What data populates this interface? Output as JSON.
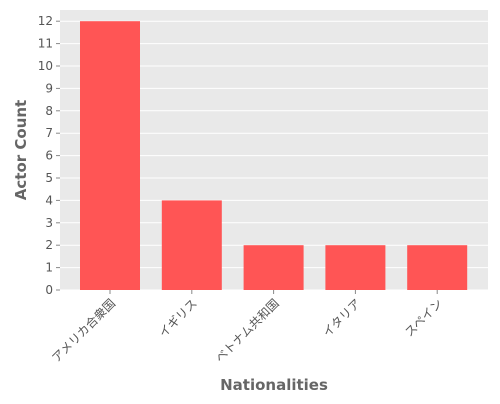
{
  "chart_data": {
    "type": "bar",
    "categories": [
      "アメリカ合衆国",
      "イギリス",
      "ベトナム共和国",
      "イタリア",
      "スペイン"
    ],
    "values": [
      12,
      4,
      2,
      2,
      2
    ],
    "xlabel": "Nationalities",
    "ylabel": "Actor Count",
    "ylim": [
      0,
      12.5
    ],
    "yticks": [
      0,
      1,
      2,
      3,
      4,
      5,
      6,
      7,
      8,
      9,
      10,
      11,
      12
    ],
    "grid": true,
    "bar_color": "#ff5555",
    "background_color": "#e9e9e9",
    "grid_color": "#ffffff"
  }
}
